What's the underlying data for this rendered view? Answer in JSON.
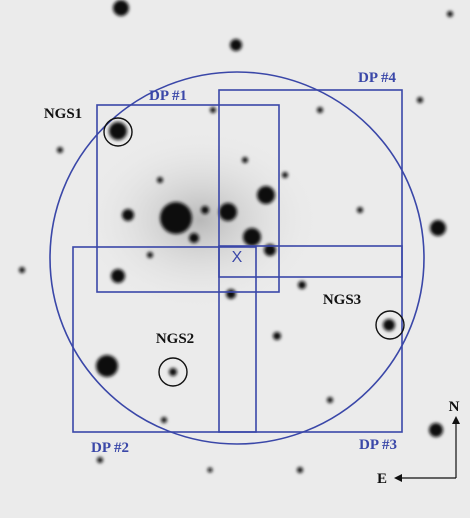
{
  "overlays": {
    "fields": [
      "DP #1",
      "DP #2",
      "DP #3",
      "DP #4"
    ],
    "guide_stars": [
      "NGS1",
      "NGS2",
      "NGS3"
    ],
    "center_mark": "X"
  },
  "compass": {
    "north": "N",
    "east": "E"
  }
}
